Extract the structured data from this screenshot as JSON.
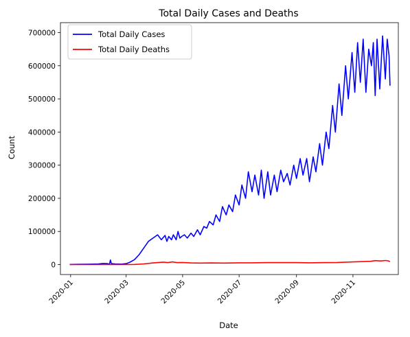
{
  "chart_data": {
    "type": "line",
    "title": "Total Daily Cases and Deaths",
    "xlabel": "Date",
    "ylabel": "Count",
    "x_range": [
      "2019-12-21",
      "2020-12-20"
    ],
    "ylim": [
      -30000,
      730000
    ],
    "x_ticks": [
      "2020-01-01",
      "2020-03-01",
      "2020-05-01",
      "2020-07-01",
      "2020-09-01",
      "2020-11-01"
    ],
    "x_tick_labels": [
      "2020-01",
      "2020-03",
      "2020-05",
      "2020-07",
      "2020-09",
      "2020-11"
    ],
    "y_ticks": [
      0,
      100000,
      200000,
      300000,
      400000,
      500000,
      600000,
      700000
    ],
    "y_tick_labels": [
      "0",
      "100000",
      "200000",
      "300000",
      "400000",
      "500000",
      "600000",
      "700000"
    ],
    "grid": false,
    "legend_position": "top-left",
    "series": [
      {
        "name": "Total Daily Cases",
        "color": "#0000ff",
        "x": [
          "2019-12-31",
          "2020-01-10",
          "2020-01-20",
          "2020-01-31",
          "2020-02-05",
          "2020-02-10",
          "2020-02-12",
          "2020-02-13",
          "2020-02-14",
          "2020-02-18",
          "2020-02-25",
          "2020-03-01",
          "2020-03-05",
          "2020-03-10",
          "2020-03-15",
          "2020-03-20",
          "2020-03-25",
          "2020-03-30",
          "2020-04-04",
          "2020-04-08",
          "2020-04-12",
          "2020-04-14",
          "2020-04-16",
          "2020-04-19",
          "2020-04-21",
          "2020-04-24",
          "2020-04-26",
          "2020-04-28",
          "2020-04-30",
          "2020-05-03",
          "2020-05-06",
          "2020-05-10",
          "2020-05-13",
          "2020-05-17",
          "2020-05-20",
          "2020-05-24",
          "2020-05-27",
          "2020-05-30",
          "2020-06-03",
          "2020-06-06",
          "2020-06-10",
          "2020-06-13",
          "2020-06-17",
          "2020-06-20",
          "2020-06-24",
          "2020-06-27",
          "2020-07-01",
          "2020-07-04",
          "2020-07-08",
          "2020-07-11",
          "2020-07-15",
          "2020-07-18",
          "2020-07-22",
          "2020-07-25",
          "2020-07-28",
          "2020-08-01",
          "2020-08-04",
          "2020-08-08",
          "2020-08-11",
          "2020-08-15",
          "2020-08-18",
          "2020-08-22",
          "2020-08-25",
          "2020-08-29",
          "2020-09-01",
          "2020-09-05",
          "2020-09-08",
          "2020-09-12",
          "2020-09-15",
          "2020-09-19",
          "2020-09-22",
          "2020-09-26",
          "2020-09-29",
          "2020-10-03",
          "2020-10-06",
          "2020-10-10",
          "2020-10-13",
          "2020-10-17",
          "2020-10-20",
          "2020-10-24",
          "2020-10-27",
          "2020-10-31",
          "2020-11-03",
          "2020-11-06",
          "2020-11-09",
          "2020-11-12",
          "2020-11-15",
          "2020-11-18",
          "2020-11-21",
          "2020-11-23",
          "2020-11-25",
          "2020-11-27",
          "2020-11-30",
          "2020-12-03",
          "2020-12-06",
          "2020-12-08",
          "2020-12-10",
          "2020-12-11"
        ],
        "values": [
          500,
          800,
          1200,
          2000,
          3500,
          3000,
          1500,
          14000,
          3000,
          2000,
          1500,
          3000,
          7000,
          15000,
          30000,
          50000,
          70000,
          80000,
          90000,
          75000,
          88000,
          70000,
          85000,
          75000,
          90000,
          75000,
          100000,
          80000,
          85000,
          90000,
          80000,
          95000,
          85000,
          105000,
          90000,
          115000,
          110000,
          130000,
          120000,
          150000,
          130000,
          175000,
          150000,
          180000,
          160000,
          210000,
          180000,
          240000,
          200000,
          280000,
          220000,
          270000,
          210000,
          285000,
          200000,
          280000,
          210000,
          270000,
          220000,
          285000,
          250000,
          275000,
          240000,
          300000,
          260000,
          320000,
          270000,
          320000,
          250000,
          325000,
          280000,
          365000,
          300000,
          400000,
          350000,
          480000,
          400000,
          545000,
          450000,
          600000,
          500000,
          640000,
          520000,
          670000,
          550000,
          680000,
          520000,
          650000,
          600000,
          670000,
          510000,
          680000,
          530000,
          690000,
          560000,
          680000,
          630000,
          540000
        ]
      },
      {
        "name": "Total Daily Deaths",
        "color": "#ff0000",
        "x": [
          "2019-12-31",
          "2020-02-01",
          "2020-02-29",
          "2020-03-10",
          "2020-03-20",
          "2020-03-30",
          "2020-04-05",
          "2020-04-10",
          "2020-04-15",
          "2020-04-20",
          "2020-04-25",
          "2020-05-01",
          "2020-05-10",
          "2020-05-20",
          "2020-06-01",
          "2020-06-15",
          "2020-07-01",
          "2020-07-15",
          "2020-08-01",
          "2020-08-15",
          "2020-09-01",
          "2020-09-15",
          "2020-10-01",
          "2020-10-15",
          "2020-10-25",
          "2020-11-01",
          "2020-11-10",
          "2020-11-20",
          "2020-11-25",
          "2020-12-01",
          "2020-12-06",
          "2020-12-09",
          "2020-12-11"
        ],
        "values": [
          0,
          100,
          200,
          500,
          2000,
          5000,
          6500,
          7500,
          6000,
          8000,
          6000,
          6500,
          5000,
          4500,
          5000,
          4500,
          5500,
          5500,
          6000,
          6000,
          6000,
          5500,
          6000,
          6500,
          7500,
          8000,
          9000,
          10000,
          12000,
          11000,
          12500,
          11500,
          9000
        ]
      }
    ]
  }
}
